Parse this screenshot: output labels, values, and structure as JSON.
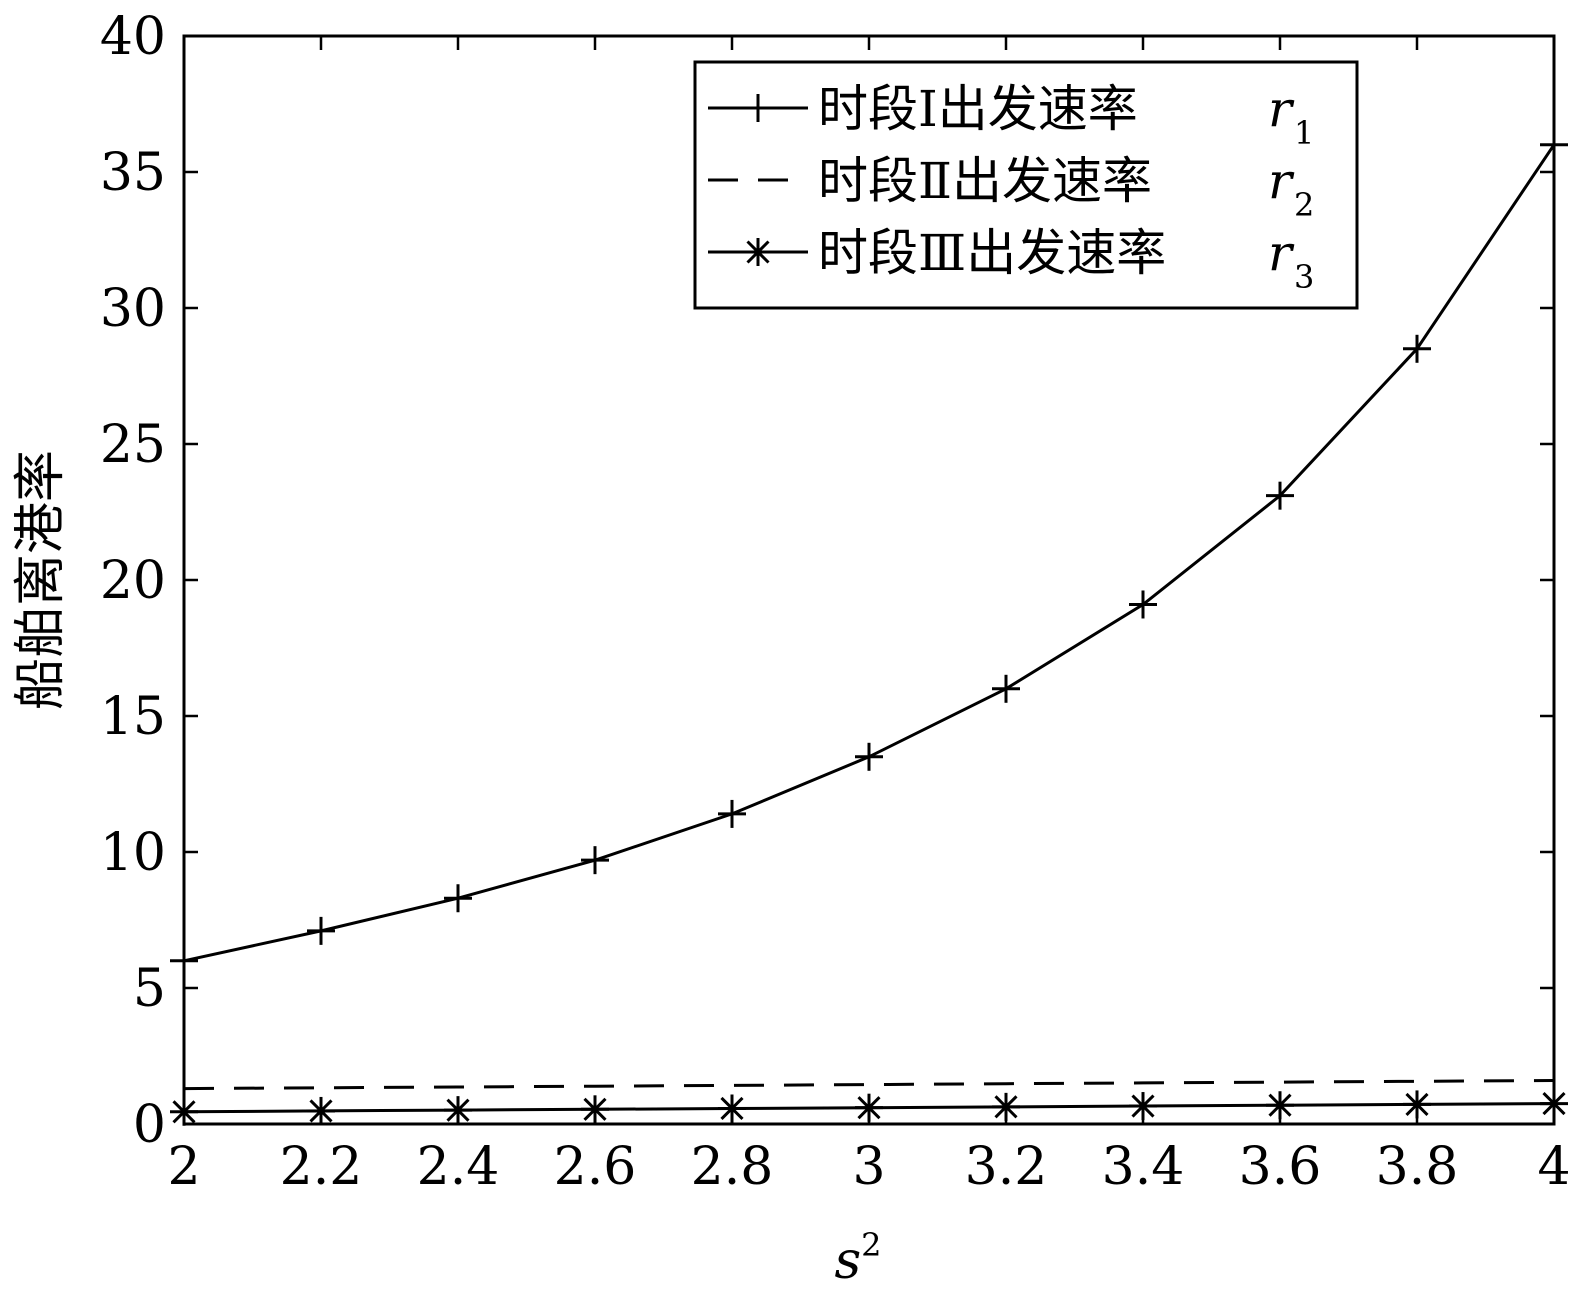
{
  "chart_data": {
    "type": "line",
    "xlabel": "s",
    "xlabel_superscript": "2",
    "ylabel": "船舶离港率",
    "xlim": [
      2,
      4
    ],
    "ylim": [
      0,
      40
    ],
    "x": [
      2,
      2.2,
      2.4,
      2.6,
      2.8,
      3,
      3.2,
      3.4,
      3.6,
      3.8,
      4
    ],
    "x_tick_labels": [
      "2",
      "2.2",
      "2.4",
      "2.6",
      "2.8",
      "3",
      "3.2",
      "3.4",
      "3.6",
      "3.8",
      "4"
    ],
    "y_ticks": [
      0,
      5,
      10,
      15,
      20,
      25,
      30,
      35,
      40
    ],
    "y_tick_labels": [
      "0",
      "5",
      "10",
      "15",
      "20",
      "25",
      "30",
      "35",
      "40"
    ],
    "grid": false,
    "legend_position": "top-right",
    "series": [
      {
        "name": "时段Ⅰ出发速率",
        "symbol": "r",
        "subscript": "1",
        "line_style": "solid",
        "marker": "plus",
        "values": [
          6.0,
          7.1,
          8.3,
          9.7,
          11.4,
          13.5,
          16.0,
          19.1,
          23.1,
          28.5,
          36.0
        ]
      },
      {
        "name": "时段Ⅱ出发速率",
        "symbol": "r",
        "subscript": "2",
        "line_style": "dashed",
        "marker": "none",
        "values": [
          1.3,
          1.33,
          1.36,
          1.39,
          1.42,
          1.45,
          1.48,
          1.51,
          1.54,
          1.57,
          1.6
        ]
      },
      {
        "name": "时段Ⅲ出发速率",
        "symbol": "r",
        "subscript": "3",
        "line_style": "solid",
        "marker": "asterisk",
        "values": [
          0.45,
          0.48,
          0.51,
          0.54,
          0.57,
          0.6,
          0.63,
          0.66,
          0.69,
          0.72,
          0.75
        ]
      }
    ],
    "colors": {
      "line": "#000000",
      "background": "#ffffff"
    }
  }
}
